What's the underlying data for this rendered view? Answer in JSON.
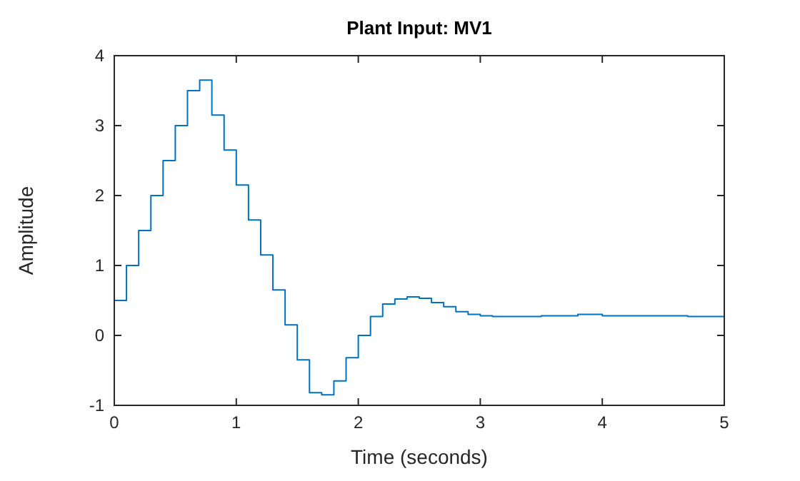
{
  "chart_data": {
    "type": "step",
    "title": "Plant Input: MV1",
    "xlabel": "Time (seconds)",
    "ylabel": "Amplitude",
    "x": [
      0,
      0.1,
      0.2,
      0.3,
      0.4,
      0.5,
      0.6,
      0.7,
      0.8,
      0.9,
      1,
      1.1,
      1.2,
      1.3,
      1.4,
      1.5,
      1.6,
      1.7,
      1.8,
      1.9,
      2,
      2.1,
      2.2,
      2.3,
      2.4,
      2.5,
      2.6,
      2.7,
      2.8,
      2.9,
      3,
      3.1,
      3.2,
      3.3,
      3.4,
      3.5,
      3.6,
      3.7,
      3.8,
      3.9,
      4,
      4.1,
      4.2,
      4.3,
      4.4,
      4.5,
      4.6,
      4.7,
      4.8,
      4.9,
      5
    ],
    "series": [
      {
        "color": "#0072bd",
        "values": [
          0.5,
          1,
          1.5,
          2,
          2.5,
          3,
          3.5,
          3.65,
          3.15,
          2.65,
          2.15,
          1.65,
          1.15,
          0.65,
          0.15,
          -0.35,
          -0.82,
          -0.85,
          -0.65,
          -0.32,
          0,
          0.27,
          0.45,
          0.52,
          0.55,
          0.53,
          0.47,
          0.41,
          0.34,
          0.3,
          0.28,
          0.27,
          0.27,
          0.27,
          0.27,
          0.28,
          0.28,
          0.28,
          0.3,
          0.3,
          0.28,
          0.28,
          0.28,
          0.28,
          0.28,
          0.28,
          0.28,
          0.27,
          0.27,
          0.27,
          0.27
        ]
      }
    ],
    "xlim": [
      0,
      5
    ],
    "xticks": [
      0,
      1,
      2,
      3,
      4,
      5
    ],
    "ylim": [
      -1,
      4
    ],
    "yticks": [
      -1,
      0,
      1,
      2,
      3,
      4
    ],
    "grid": false
  }
}
